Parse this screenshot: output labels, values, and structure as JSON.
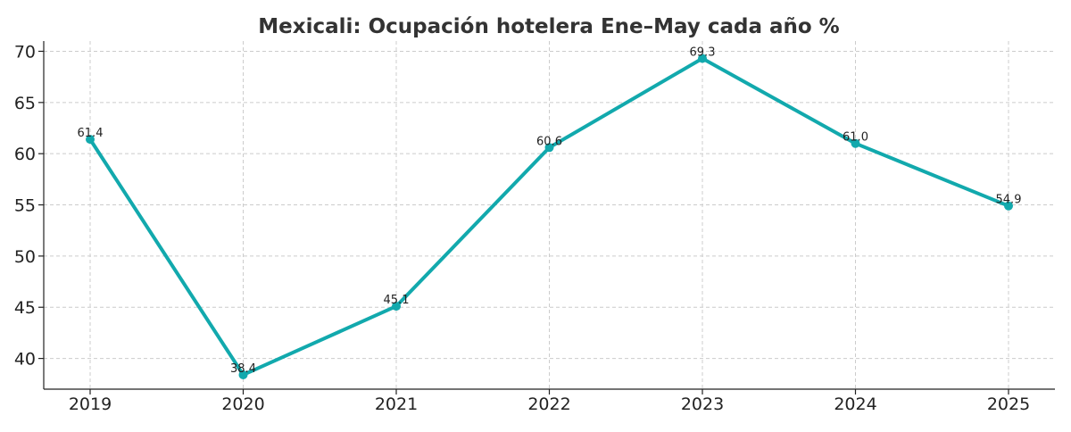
{
  "chart_data": {
    "type": "line",
    "title": "Mexicali: Ocupación hotelera Ene–May cada año %",
    "xlabel": "",
    "ylabel": "",
    "categories": [
      "2019",
      "2020",
      "2021",
      "2022",
      "2023",
      "2024",
      "2025"
    ],
    "series": [
      {
        "values": [
          61.4,
          38.4,
          45.1,
          60.6,
          69.3,
          61.0,
          54.9
        ],
        "labels": [
          "61.4",
          "38.4",
          "45.1",
          "60.6",
          "69.3",
          "61.0",
          "54.9"
        ],
        "color": "#12a9ad"
      }
    ],
    "ylim": [
      37,
      71
    ],
    "yticks": [
      40,
      45,
      50,
      55,
      60,
      65,
      70
    ],
    "ytick_labels": [
      "40",
      "45",
      "50",
      "55",
      "60",
      "65",
      "70"
    ],
    "grid": true,
    "legend": "none"
  }
}
